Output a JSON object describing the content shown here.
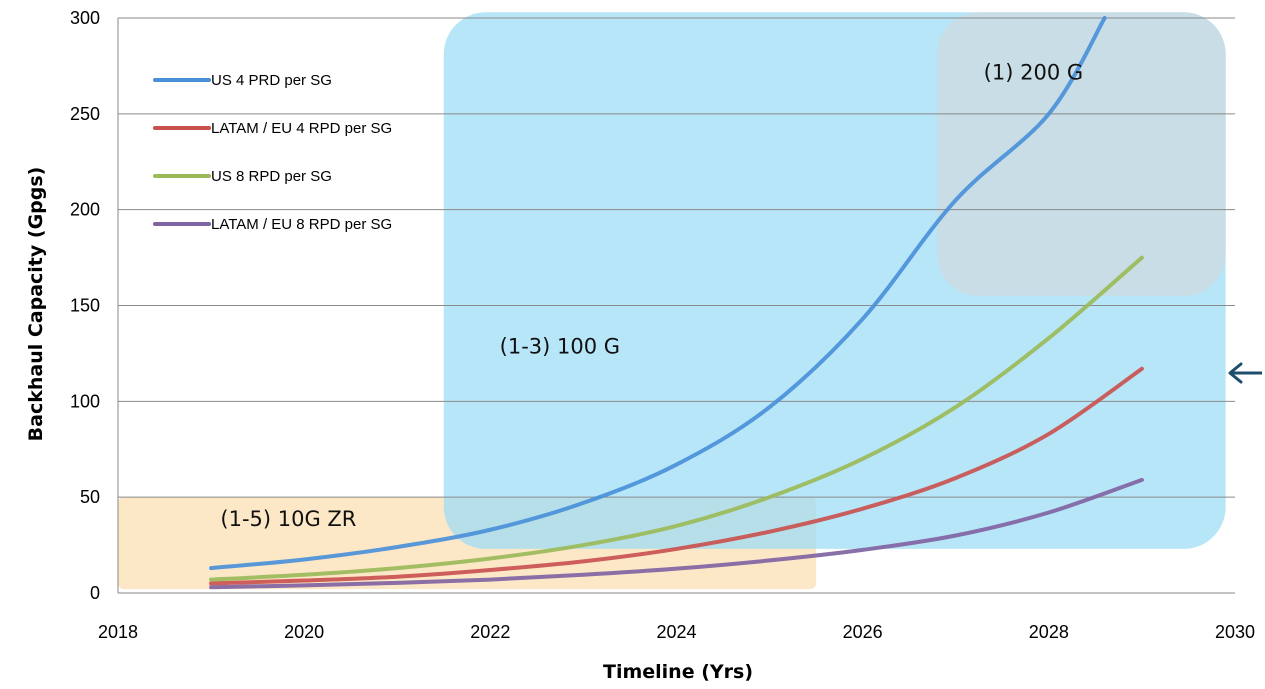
{
  "chart_data": {
    "type": "line",
    "xlabel": "Timeline (Yrs)",
    "ylabel": "Backhaul Capacity (Gpgs)",
    "xlim": [
      2018,
      2030
    ],
    "ylim": [
      0,
      300
    ],
    "x_ticks": [
      2018,
      2020,
      2022,
      2024,
      2026,
      2028,
      2030
    ],
    "y_ticks": [
      0,
      50,
      100,
      150,
      200,
      250,
      300
    ],
    "grid": "horizontal",
    "legend_position": "top-left",
    "series": [
      {
        "name": "US 4 PRD per SG",
        "color": "#4a90d9",
        "x": [
          2019,
          2020,
          2021,
          2022,
          2023,
          2024,
          2025,
          2026,
          2027,
          2028,
          2028.6
        ],
        "y": [
          13,
          17.5,
          24,
          33,
          47,
          67,
          97,
          143,
          205,
          250,
          300
        ]
      },
      {
        "name": "LATAM / EU 4 RPD per SG",
        "color": "#c9524f",
        "x": [
          2019,
          2020,
          2021,
          2022,
          2023,
          2024,
          2025,
          2026,
          2027,
          2028,
          2029
        ],
        "y": [
          5,
          6.5,
          8.5,
          12,
          16.5,
          23,
          32,
          44,
          60,
          83,
          117
        ]
      },
      {
        "name": "US 8 RPD per SG",
        "color": "#9bbb59",
        "x": [
          2019,
          2020,
          2021,
          2022,
          2023,
          2024,
          2025,
          2026,
          2027,
          2028,
          2029
        ],
        "y": [
          7,
          9.5,
          13,
          18,
          25,
          35,
          50,
          70,
          97,
          133,
          175
        ]
      },
      {
        "name": "LATAM / EU 8 RPD per SG",
        "color": "#8064a2",
        "x": [
          2019,
          2020,
          2021,
          2022,
          2023,
          2024,
          2025,
          2026,
          2027,
          2028,
          2029
        ],
        "y": [
          3,
          4,
          5.3,
          7,
          9.5,
          12.7,
          17,
          22.5,
          30,
          42,
          59
        ]
      }
    ],
    "regions": [
      {
        "label": "(1-5) 10G ZR",
        "color": "#fbe3bd",
        "x0": 2018,
        "x1": 2025.5,
        "y0": 2,
        "y1": 50
      },
      {
        "label": "(1-3) 100 G",
        "color": "#9ddcf6",
        "x0": 2021.5,
        "x1": 2029.9,
        "y0": 23,
        "y1": 303
      },
      {
        "label": "(1) 200 G",
        "color": "#d6d6d6",
        "x0": 2026.8,
        "x1": 2029.9,
        "y0": 155,
        "y1": 303
      }
    ]
  }
}
